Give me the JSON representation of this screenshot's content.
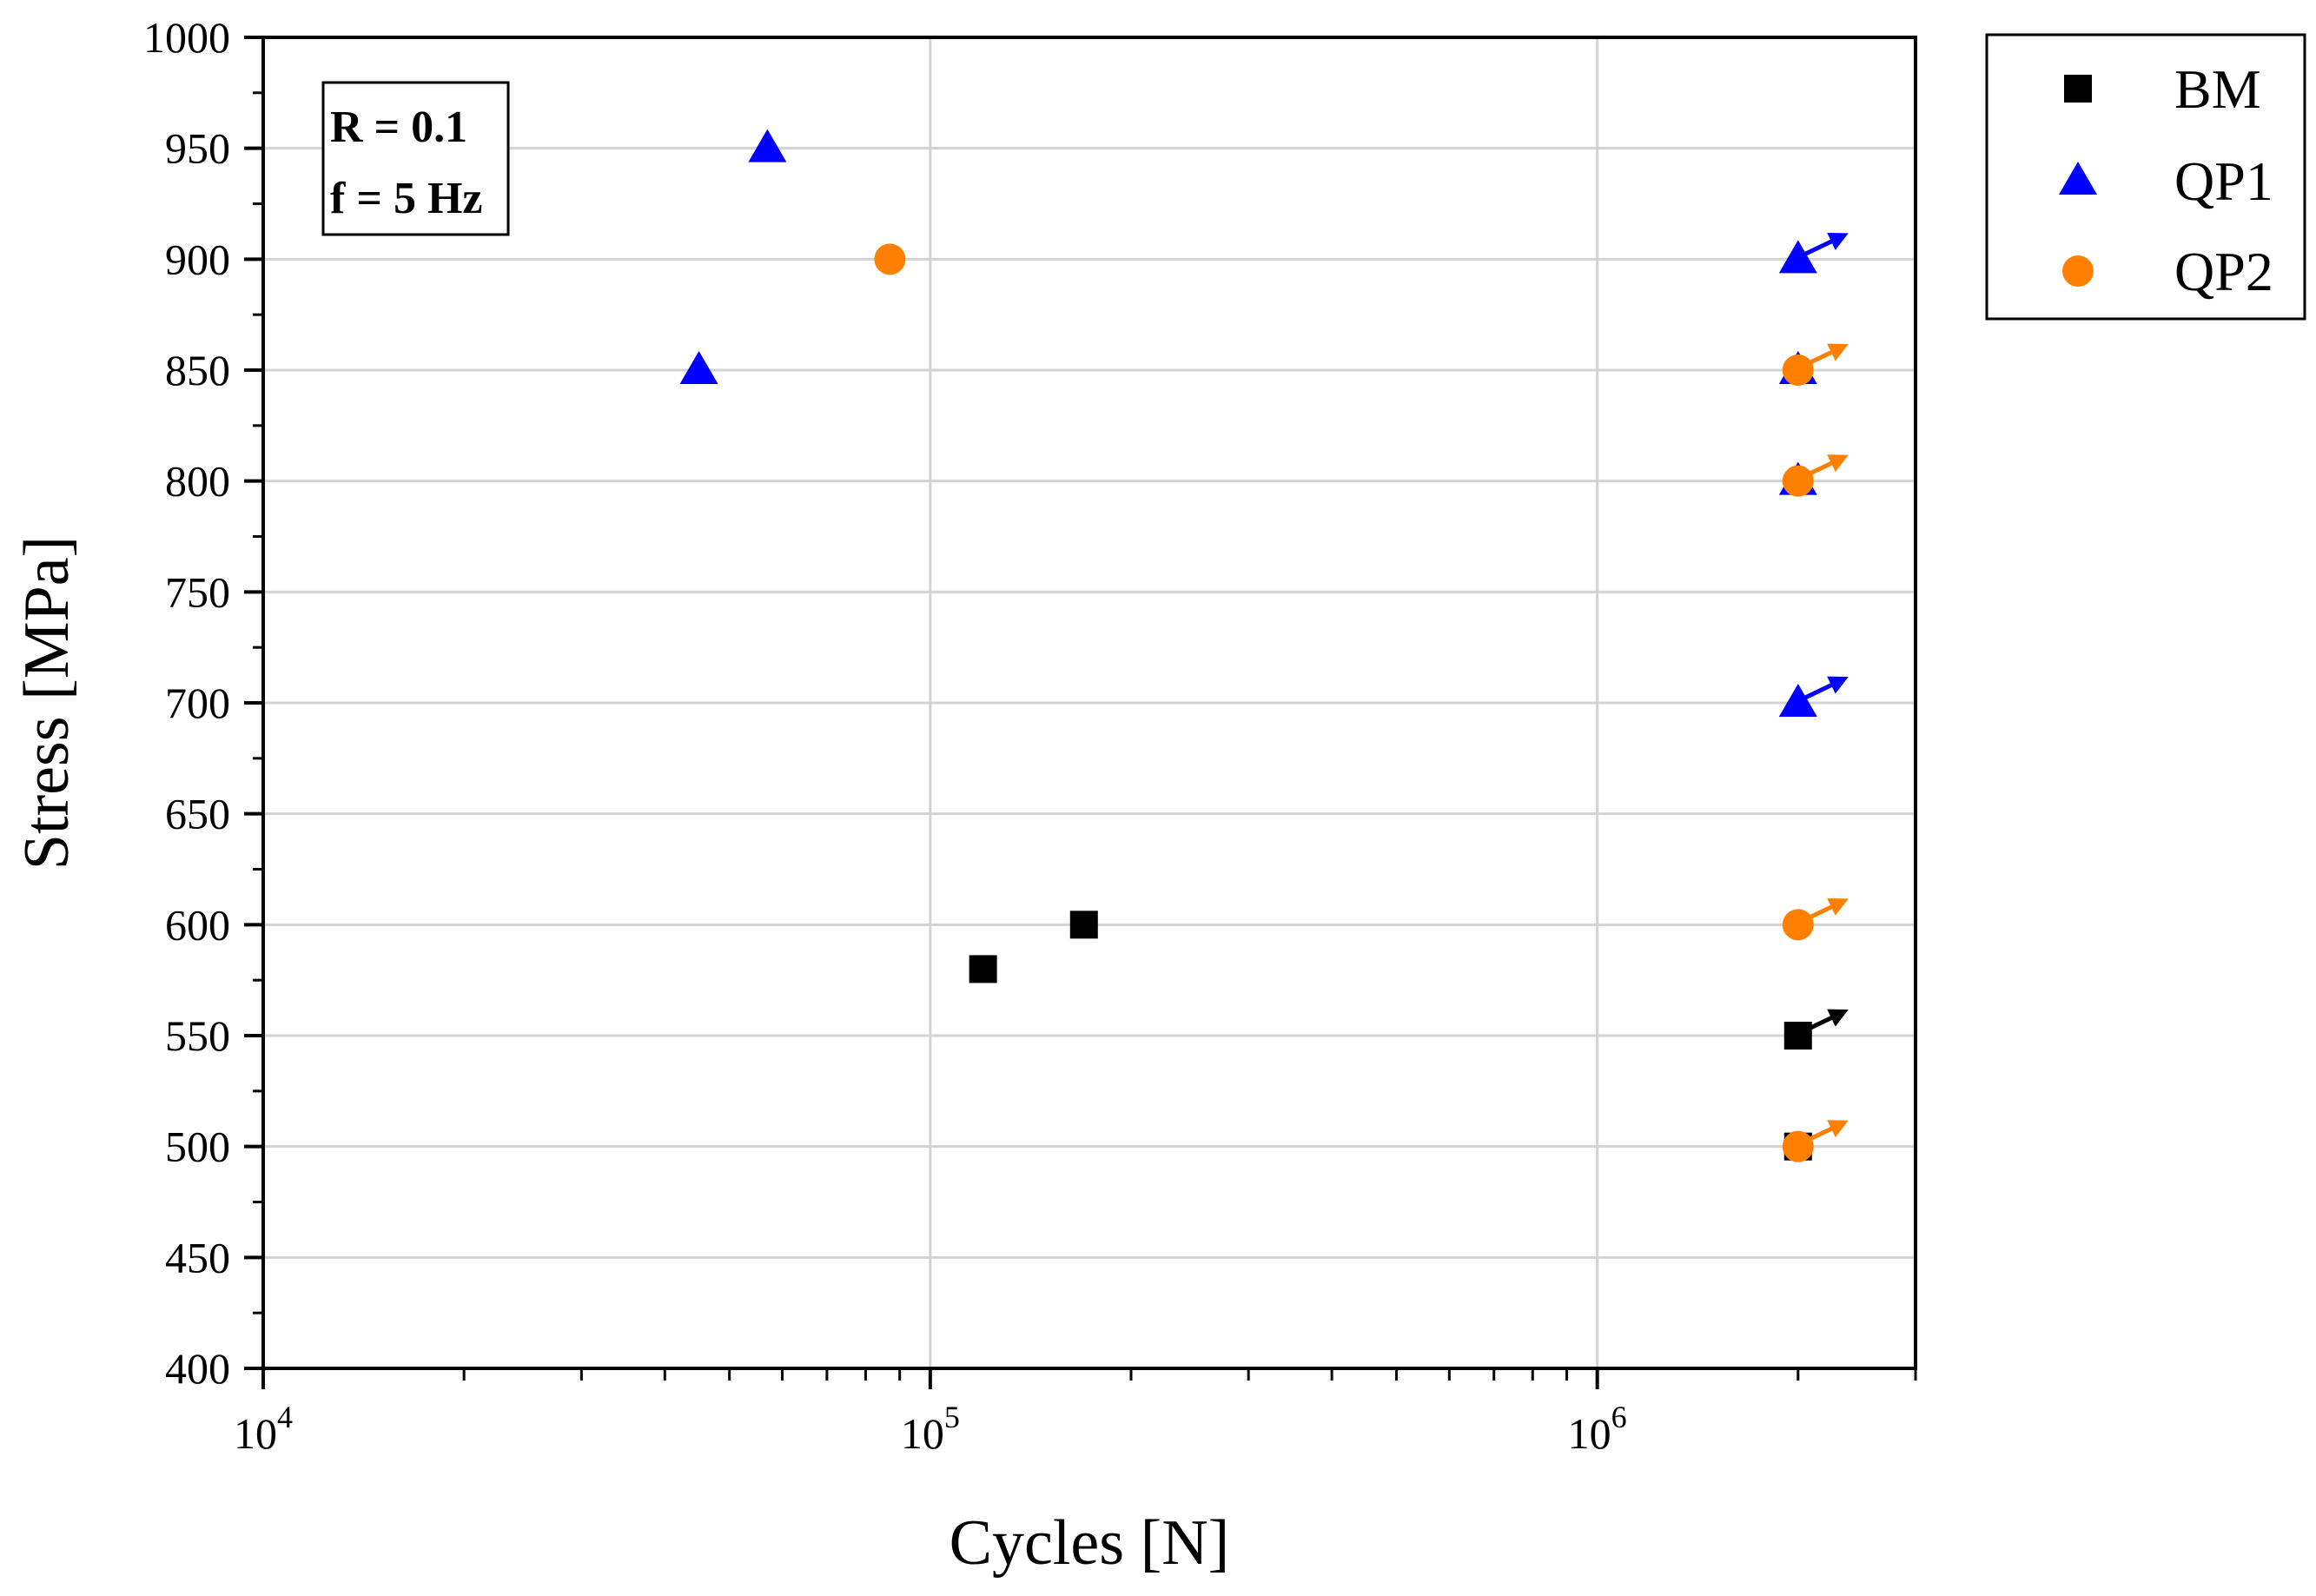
{
  "chart_data": {
    "type": "scatter",
    "title": "",
    "xlabel": "Cycles [N]",
    "ylabel": "Stress [MPa]",
    "xscale": "log",
    "xlim": [
      10000,
      3000000
    ],
    "ylim": [
      400,
      1000
    ],
    "x_ticks": [
      {
        "base": "10",
        "exp": "4"
      },
      {
        "base": "10",
        "exp": "5"
      },
      {
        "base": "10",
        "exp": "6"
      }
    ],
    "y_ticks": [
      "400",
      "450",
      "500",
      "550",
      "600",
      "650",
      "700",
      "750",
      "800",
      "850",
      "900",
      "950",
      "1000"
    ],
    "grid": true,
    "legend_position": "outside-right-top",
    "annotations": [
      "R = 0.1",
      "f = 5 Hz"
    ],
    "series": [
      {
        "name": "BM",
        "marker": "square",
        "color": "#000000",
        "points": [
          {
            "x": 120000,
            "y": 580,
            "runout": false
          },
          {
            "x": 170000,
            "y": 600,
            "runout": false
          },
          {
            "x": 2000000,
            "y": 550,
            "runout": true
          },
          {
            "x": 2000000,
            "y": 500,
            "runout": true
          }
        ]
      },
      {
        "name": "QP1",
        "marker": "triangle",
        "color": "#0000ff",
        "points": [
          {
            "x": 57000,
            "y": 950,
            "runout": false
          },
          {
            "x": 45000,
            "y": 850,
            "runout": false
          },
          {
            "x": 2000000,
            "y": 900,
            "runout": true
          },
          {
            "x": 2000000,
            "y": 850,
            "runout": true
          },
          {
            "x": 2000000,
            "y": 800,
            "runout": true
          },
          {
            "x": 2000000,
            "y": 700,
            "runout": true
          }
        ]
      },
      {
        "name": "QP2",
        "marker": "circle",
        "color": "#ff8000",
        "points": [
          {
            "x": 87000,
            "y": 900,
            "runout": false
          },
          {
            "x": 2000000,
            "y": 850,
            "runout": true
          },
          {
            "x": 2000000,
            "y": 800,
            "runout": true
          },
          {
            "x": 2000000,
            "y": 600,
            "runout": true
          },
          {
            "x": 2000000,
            "y": 500,
            "runout": true
          }
        ]
      }
    ]
  }
}
